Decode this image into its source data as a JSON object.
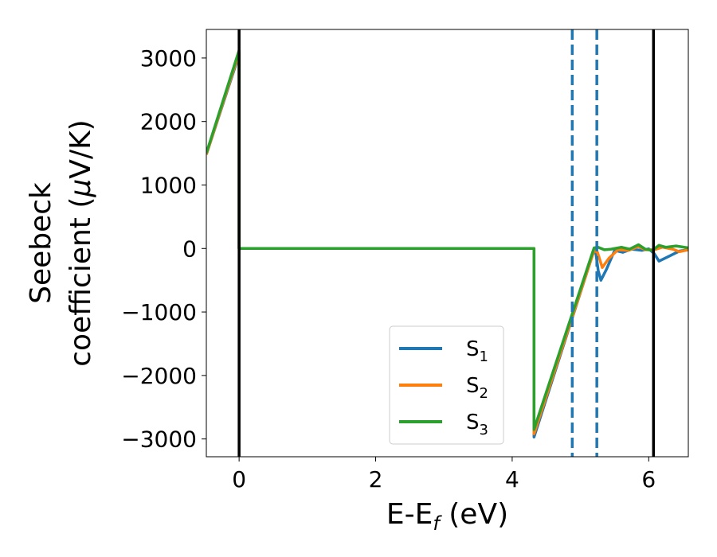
{
  "chart_data": {
    "type": "line",
    "xlabel_main": "E-E",
    "xlabel_sub": "f",
    "xlabel_unit": " (eV)",
    "ylabel_line1": "Seebeck",
    "ylabel_line2_a": "coefficient  (",
    "ylabel_line2_mu": "μ",
    "ylabel_line2_b": "V/K)",
    "xlim": [
      -0.48,
      6.58
    ],
    "ylim": [
      -3280,
      3450
    ],
    "x_ticks": [
      0,
      2,
      4,
      6
    ],
    "y_ticks": [
      3000,
      2000,
      1000,
      0,
      -1000,
      -2000,
      -3000
    ],
    "x_tick_labels": [
      "0",
      "2",
      "4",
      "6"
    ],
    "y_tick_labels": [
      "3000",
      "2000",
      "1000",
      "0",
      "−1000",
      "−2000",
      "−3000"
    ],
    "vertical_lines": [
      {
        "x": 0.0,
        "style": "solid",
        "color": "#000000"
      },
      {
        "x": 6.07,
        "style": "solid",
        "color": "#000000"
      },
      {
        "x": 4.88,
        "style": "dashed",
        "color": "#1f77b4"
      },
      {
        "x": 5.24,
        "style": "dashed",
        "color": "#1f77b4"
      }
    ],
    "legend_position": "lower-center",
    "series": [
      {
        "name_main": "S",
        "name_sub": "1",
        "color": "#1f77b4",
        "points": [
          [
            -0.48,
            1480
          ],
          [
            0.0,
            3050
          ],
          [
            0.0,
            0
          ],
          [
            4.32,
            0
          ],
          [
            4.32,
            -2970
          ],
          [
            5.18,
            -90
          ],
          [
            5.22,
            -30
          ],
          [
            5.26,
            -350
          ],
          [
            5.3,
            -500
          ],
          [
            5.38,
            -330
          ],
          [
            5.5,
            -30
          ],
          [
            5.62,
            -60
          ],
          [
            5.75,
            -10
          ],
          [
            5.9,
            -30
          ],
          [
            6.0,
            -5
          ],
          [
            6.08,
            -80
          ],
          [
            6.15,
            -200
          ],
          [
            6.3,
            -120
          ],
          [
            6.45,
            -40
          ],
          [
            6.58,
            -20
          ]
        ]
      },
      {
        "name_main": "S",
        "name_sub": "2",
        "color": "#ff7f0e",
        "points": [
          [
            -0.48,
            1480
          ],
          [
            0.0,
            3080
          ],
          [
            0.0,
            0
          ],
          [
            4.32,
            0
          ],
          [
            4.32,
            -2920
          ],
          [
            5.2,
            -30
          ],
          [
            5.25,
            -60
          ],
          [
            5.32,
            -300
          ],
          [
            5.42,
            -150
          ],
          [
            5.55,
            -20
          ],
          [
            5.7,
            -30
          ],
          [
            5.85,
            30
          ],
          [
            5.95,
            -20
          ],
          [
            6.08,
            -20
          ],
          [
            6.2,
            20
          ],
          [
            6.35,
            -10
          ],
          [
            6.45,
            -50
          ],
          [
            6.58,
            -20
          ]
        ]
      },
      {
        "name_main": "S",
        "name_sub": "3",
        "color": "#2ca02c",
        "points": [
          [
            -0.48,
            1500
          ],
          [
            0.0,
            3120
          ],
          [
            0.0,
            0
          ],
          [
            4.32,
            0
          ],
          [
            4.32,
            -2850
          ],
          [
            5.2,
            10
          ],
          [
            5.26,
            20
          ],
          [
            5.35,
            -20
          ],
          [
            5.45,
            -10
          ],
          [
            5.6,
            20
          ],
          [
            5.72,
            -10
          ],
          [
            5.85,
            60
          ],
          [
            5.95,
            -10
          ],
          [
            6.05,
            -30
          ],
          [
            6.15,
            50
          ],
          [
            6.25,
            20
          ],
          [
            6.4,
            40
          ],
          [
            6.58,
            10
          ]
        ]
      }
    ]
  }
}
